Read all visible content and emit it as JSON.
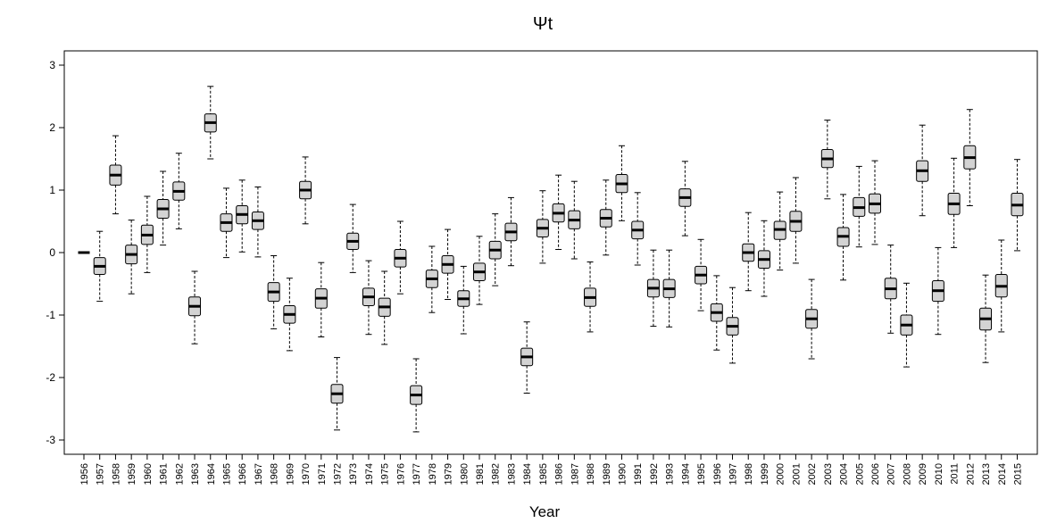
{
  "chart_data": {
    "type": "boxplot",
    "title": "Ψt",
    "xlabel": "Year",
    "ylabel": "",
    "ylim": [
      -3.3,
      3.2
    ],
    "yticks": [
      -3,
      -2,
      -1,
      0,
      1,
      2,
      3
    ],
    "grid": false,
    "legend": "none",
    "colors": {
      "box_fill": "#d3d3d3",
      "stroke": "#000000"
    },
    "categories": [
      "1956",
      "1957",
      "1958",
      "1959",
      "1960",
      "1961",
      "1962",
      "1963",
      "1964",
      "1965",
      "1966",
      "1967",
      "1968",
      "1969",
      "1970",
      "1971",
      "1972",
      "1973",
      "1974",
      "1975",
      "1976",
      "1977",
      "1978",
      "1979",
      "1980",
      "1981",
      "1982",
      "1983",
      "1984",
      "1985",
      "1986",
      "1987",
      "1988",
      "1989",
      "1990",
      "1991",
      "1992",
      "1993",
      "1994",
      "1995",
      "1996",
      "1997",
      "1998",
      "1999",
      "2000",
      "2001",
      "2002",
      "2003",
      "2004",
      "2005",
      "2006",
      "2007",
      "2008",
      "2009",
      "2010",
      "2011",
      "2012",
      "2013",
      "2014",
      "2015"
    ],
    "boxes": [
      {
        "min": 0.0,
        "q1": 0.0,
        "median": 0.0,
        "q3": 0.0,
        "max": 0.0
      },
      {
        "min": -0.78,
        "q1": -0.35,
        "median": -0.22,
        "q3": -0.08,
        "max": 0.34
      },
      {
        "min": 0.62,
        "q1": 1.08,
        "median": 1.24,
        "q3": 1.4,
        "max": 1.87
      },
      {
        "min": -0.66,
        "q1": -0.18,
        "median": -0.03,
        "q3": 0.12,
        "max": 0.52
      },
      {
        "min": -0.32,
        "q1": 0.13,
        "median": 0.28,
        "q3": 0.44,
        "max": 0.9
      },
      {
        "min": 0.12,
        "q1": 0.55,
        "median": 0.7,
        "q3": 0.85,
        "max": 1.3
      },
      {
        "min": 0.38,
        "q1": 0.84,
        "median": 0.98,
        "q3": 1.13,
        "max": 1.59
      },
      {
        "min": -1.46,
        "q1": -1.01,
        "median": -0.86,
        "q3": -0.71,
        "max": -0.3
      },
      {
        "min": 1.5,
        "q1": 1.93,
        "median": 2.08,
        "q3": 2.22,
        "max": 2.66
      },
      {
        "min": -0.08,
        "q1": 0.34,
        "median": 0.48,
        "q3": 0.62,
        "max": 1.03
      },
      {
        "min": 0.01,
        "q1": 0.46,
        "median": 0.61,
        "q3": 0.75,
        "max": 1.16
      },
      {
        "min": -0.07,
        "q1": 0.37,
        "median": 0.51,
        "q3": 0.65,
        "max": 1.05
      },
      {
        "min": -1.22,
        "q1": -0.78,
        "median": -0.63,
        "q3": -0.48,
        "max": -0.05
      },
      {
        "min": -1.57,
        "q1": -1.13,
        "median": -0.99,
        "q3": -0.85,
        "max": -0.41
      },
      {
        "min": 0.46,
        "q1": 0.86,
        "median": 1.0,
        "q3": 1.14,
        "max": 1.53
      },
      {
        "min": -1.35,
        "q1": -0.89,
        "median": -0.73,
        "q3": -0.58,
        "max": -0.16
      },
      {
        "min": -2.84,
        "q1": -2.41,
        "median": -2.26,
        "q3": -2.11,
        "max": -1.68
      },
      {
        "min": -0.32,
        "q1": 0.05,
        "median": 0.18,
        "q3": 0.31,
        "max": 0.77
      },
      {
        "min": -1.31,
        "q1": -0.85,
        "median": -0.71,
        "q3": -0.57,
        "max": -0.13
      },
      {
        "min": -1.47,
        "q1": -1.02,
        "median": -0.87,
        "q3": -0.73,
        "max": -0.3
      },
      {
        "min": -0.66,
        "q1": -0.23,
        "median": -0.09,
        "q3": 0.05,
        "max": 0.5
      },
      {
        "min": -2.87,
        "q1": -2.43,
        "median": -2.28,
        "q3": -2.13,
        "max": -1.7
      },
      {
        "min": -0.96,
        "q1": -0.56,
        "median": -0.42,
        "q3": -0.28,
        "max": 0.1
      },
      {
        "min": -0.75,
        "q1": -0.33,
        "median": -0.19,
        "q3": -0.05,
        "max": 0.37
      },
      {
        "min": -1.3,
        "q1": -0.86,
        "median": -0.74,
        "q3": -0.61,
        "max": -0.22
      },
      {
        "min": -0.83,
        "q1": -0.45,
        "median": -0.31,
        "q3": -0.17,
        "max": 0.26
      },
      {
        "min": -0.53,
        "q1": -0.1,
        "median": 0.04,
        "q3": 0.18,
        "max": 0.62
      },
      {
        "min": -0.21,
        "q1": 0.19,
        "median": 0.33,
        "q3": 0.47,
        "max": 0.88
      },
      {
        "min": -2.25,
        "q1": -1.81,
        "median": -1.67,
        "q3": -1.53,
        "max": -1.11
      },
      {
        "min": -0.17,
        "q1": 0.25,
        "median": 0.39,
        "q3": 0.53,
        "max": 0.99
      },
      {
        "min": 0.05,
        "q1": 0.49,
        "median": 0.63,
        "q3": 0.78,
        "max": 1.24
      },
      {
        "min": -0.1,
        "q1": 0.38,
        "median": 0.52,
        "q3": 0.67,
        "max": 1.14
      },
      {
        "min": -1.27,
        "q1": -0.86,
        "median": -0.72,
        "q3": -0.57,
        "max": -0.15
      },
      {
        "min": -0.04,
        "q1": 0.41,
        "median": 0.55,
        "q3": 0.69,
        "max": 1.16
      },
      {
        "min": 0.51,
        "q1": 0.96,
        "median": 1.1,
        "q3": 1.25,
        "max": 1.71
      },
      {
        "min": -0.2,
        "q1": 0.22,
        "median": 0.36,
        "q3": 0.5,
        "max": 0.96
      },
      {
        "min": -1.18,
        "q1": -0.71,
        "median": -0.57,
        "q3": -0.43,
        "max": 0.04
      },
      {
        "min": -1.19,
        "q1": -0.72,
        "median": -0.58,
        "q3": -0.43,
        "max": 0.04
      },
      {
        "min": 0.27,
        "q1": 0.74,
        "median": 0.88,
        "q3": 1.02,
        "max": 1.46
      },
      {
        "min": -0.93,
        "q1": -0.5,
        "median": -0.36,
        "q3": -0.22,
        "max": 0.21
      },
      {
        "min": -1.56,
        "q1": -1.1,
        "median": -0.96,
        "q3": -0.82,
        "max": -0.37
      },
      {
        "min": -1.77,
        "q1": -1.32,
        "median": -1.18,
        "q3": -1.04,
        "max": -0.56
      },
      {
        "min": -0.61,
        "q1": -0.14,
        "median": 0.0,
        "q3": 0.14,
        "max": 0.64
      },
      {
        "min": -0.7,
        "q1": -0.25,
        "median": -0.11,
        "q3": 0.03,
        "max": 0.51
      },
      {
        "min": -0.28,
        "q1": 0.21,
        "median": 0.37,
        "q3": 0.5,
        "max": 0.97
      },
      {
        "min": -0.17,
        "q1": 0.34,
        "median": 0.5,
        "q3": 0.66,
        "max": 1.2
      },
      {
        "min": -1.7,
        "q1": -1.21,
        "median": -1.06,
        "q3": -0.91,
        "max": -0.43
      },
      {
        "min": 0.86,
        "q1": 1.36,
        "median": 1.5,
        "q3": 1.65,
        "max": 2.12
      },
      {
        "min": -0.44,
        "q1": 0.1,
        "median": 0.26,
        "q3": 0.4,
        "max": 0.93
      },
      {
        "min": 0.09,
        "q1": 0.58,
        "median": 0.72,
        "q3": 0.88,
        "max": 1.38
      },
      {
        "min": 0.13,
        "q1": 0.63,
        "median": 0.78,
        "q3": 0.94,
        "max": 1.47
      },
      {
        "min": -1.29,
        "q1": -0.74,
        "median": -0.58,
        "q3": -0.41,
        "max": 0.12
      },
      {
        "min": -1.83,
        "q1": -1.32,
        "median": -1.16,
        "q3": -1.0,
        "max": -0.49
      },
      {
        "min": 0.59,
        "q1": 1.14,
        "median": 1.31,
        "q3": 1.47,
        "max": 2.04
      },
      {
        "min": -1.31,
        "q1": -0.78,
        "median": -0.61,
        "q3": -0.45,
        "max": 0.08
      },
      {
        "min": 0.08,
        "q1": 0.61,
        "median": 0.78,
        "q3": 0.95,
        "max": 1.51
      },
      {
        "min": 0.75,
        "q1": 1.34,
        "median": 1.52,
        "q3": 1.71,
        "max": 2.29
      },
      {
        "min": -1.76,
        "q1": -1.24,
        "median": -1.06,
        "q3": -0.89,
        "max": -0.36
      },
      {
        "min": -1.27,
        "q1": -0.71,
        "median": -0.54,
        "q3": -0.35,
        "max": 0.2
      },
      {
        "min": 0.03,
        "q1": 0.59,
        "median": 0.76,
        "q3": 0.95,
        "max": 1.49
      }
    ]
  }
}
